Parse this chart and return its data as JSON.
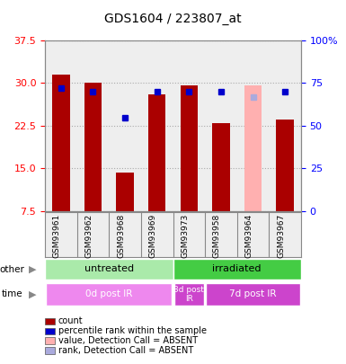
{
  "title": "GDS1604 / 223807_at",
  "samples": [
    "GSM93961",
    "GSM93962",
    "GSM93968",
    "GSM93969",
    "GSM93973",
    "GSM93958",
    "GSM93964",
    "GSM93967"
  ],
  "bar_values": [
    31.5,
    30.0,
    14.2,
    28.0,
    29.5,
    23.0,
    29.5,
    23.5
  ],
  "bar_absent": [
    false,
    false,
    false,
    false,
    false,
    false,
    true,
    false
  ],
  "rank_values": [
    29.0,
    28.5,
    23.8,
    28.5,
    28.5,
    28.5,
    27.5,
    28.5
  ],
  "rank_absent": [
    false,
    false,
    false,
    false,
    false,
    false,
    true,
    false
  ],
  "ylim_left": [
    7.5,
    37.5
  ],
  "ylim_right": [
    0,
    100
  ],
  "yticks_left": [
    7.5,
    15.0,
    22.5,
    30.0,
    37.5
  ],
  "yticks_right": [
    0,
    25,
    50,
    75,
    100
  ],
  "ytick_labels_right": [
    "0",
    "25",
    "50",
    "75",
    "100%"
  ],
  "bar_color_present": "#aa0000",
  "bar_color_absent": "#ffb0b0",
  "rank_color_present": "#0000cc",
  "rank_color_absent": "#aaaadd",
  "grid_color": "#aaaaaa",
  "bg_color": "#eeeeee",
  "bar_width": 0.55,
  "rank_marker_size": 5,
  "groups_other": [
    {
      "label": "untreated",
      "start": 0,
      "end": 4,
      "color": "#aaeaaa"
    },
    {
      "label": "irradiated",
      "start": 4,
      "end": 8,
      "color": "#44cc44"
    }
  ],
  "groups_time": [
    {
      "label": "0d post IR",
      "start": 0,
      "end": 4,
      "color": "#ee88ee"
    },
    {
      "label": "3d post\nIR",
      "start": 4,
      "end": 5,
      "color": "#cc44cc"
    },
    {
      "label": "7d post IR",
      "start": 5,
      "end": 8,
      "color": "#cc44cc"
    }
  ],
  "legend_items": [
    {
      "label": "count",
      "color": "#aa0000"
    },
    {
      "label": "percentile rank within the sample",
      "color": "#0000cc"
    },
    {
      "label": "value, Detection Call = ABSENT",
      "color": "#ffb0b0"
    },
    {
      "label": "rank, Detection Call = ABSENT",
      "color": "#aaaadd"
    }
  ]
}
